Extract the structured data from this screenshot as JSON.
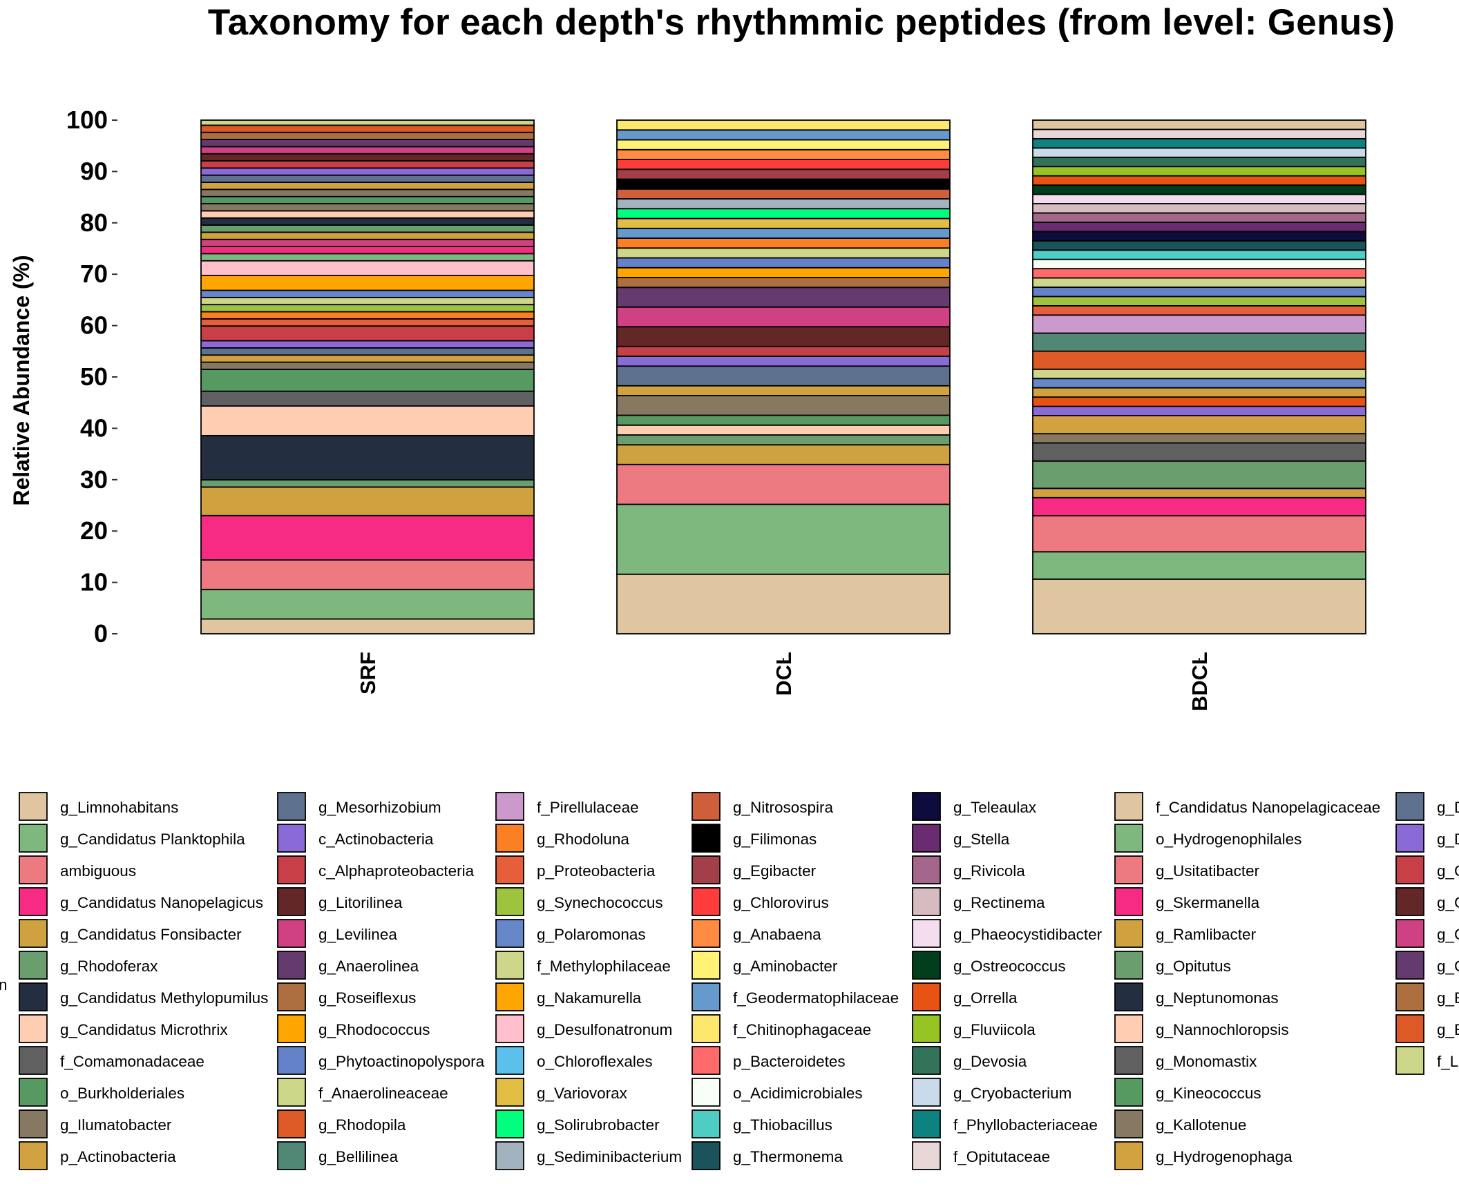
{
  "chart_data": {
    "type": "bar",
    "stacked": true,
    "title": "Taxonomy for each depth's rhythmmic peptides (from level: Genus)",
    "ylabel": "Relative Abundance (%)",
    "xlabel": "",
    "ylim": [
      0,
      100
    ],
    "yticks": [
      "0",
      "10",
      "20",
      "30",
      "40",
      "50",
      "60",
      "70",
      "80",
      "90",
      "100"
    ],
    "categories": [
      "SRF",
      "DCL",
      "BDCL"
    ],
    "legend_title_fragment": "n",
    "legend": [
      {
        "label": "g_Limnohabitans",
        "color": "#DFC5A0"
      },
      {
        "label": "g_Candidatus Planktophila",
        "color": "#7EB87E"
      },
      {
        "label": "ambiguous",
        "color": "#EC7A80"
      },
      {
        "label": "g_Candidatus Nanopelagicus",
        "color": "#F72B84"
      },
      {
        "label": "g_Candidatus Fonsibacter",
        "color": "#CFA23F"
      },
      {
        "label": "g_Rhodoferax",
        "color": "#6B9E6E"
      },
      {
        "label": "g_Candidatus Methylopumilus",
        "color": "#232E40"
      },
      {
        "label": "g_Candidatus Microthrix",
        "color": "#FFCDB2"
      },
      {
        "label": "f_Comamonadaceae",
        "color": "#606060"
      },
      {
        "label": "o_Burkholderiales",
        "color": "#579A61"
      },
      {
        "label": "g_Ilumatobacter",
        "color": "#877961"
      },
      {
        "label": "p_Actinobacteria",
        "color": "#D3A240"
      },
      {
        "label": "g_Mesorhizobium",
        "color": "#5E7290"
      },
      {
        "label": "c_Actinobacteria",
        "color": "#8A6AD6"
      },
      {
        "label": "c_Alphaproteobacteria",
        "color": "#C93F48"
      },
      {
        "label": "g_Litorilinea",
        "color": "#632727"
      },
      {
        "label": "g_Levilinea",
        "color": "#CF4182"
      },
      {
        "label": "g_Anaerolinea",
        "color": "#643A6F"
      },
      {
        "label": "g_Roseiflexus",
        "color": "#AD6F40"
      },
      {
        "label": "g_Rhodococcus",
        "color": "#FFA602"
      },
      {
        "label": "g_Phytoactinopolyspora",
        "color": "#6482C8"
      },
      {
        "label": "f_Anaerolineaceae",
        "color": "#CDD789"
      },
      {
        "label": "g_Rhodopila",
        "color": "#DD5A26"
      },
      {
        "label": "g_Bellilinea",
        "color": "#508775"
      },
      {
        "label": "f_Pirellulaceae",
        "color": "#CC99CC"
      },
      {
        "label": "g_Rhodoluna",
        "color": "#FD7F23"
      },
      {
        "label": "p_Proteobacteria",
        "color": "#E75E3B"
      },
      {
        "label": "g_Synechococcus",
        "color": "#9EC33F"
      },
      {
        "label": "g_Polaromonas",
        "color": "#6586C9"
      },
      {
        "label": "f_Methylophilaceae",
        "color": "#CED789"
      },
      {
        "label": "g_Nakamurella",
        "color": "#FFA602"
      },
      {
        "label": "g_Desulfonatronum",
        "color": "#FFC0CB"
      },
      {
        "label": "o_Chloroflexales",
        "color": "#5BC0EB"
      },
      {
        "label": "g_Variovorax",
        "color": "#E1BE43"
      },
      {
        "label": "g_Solirubrobacter",
        "color": "#00FF7F"
      },
      {
        "label": "g_Sediminibacterium",
        "color": "#A2B2BE"
      },
      {
        "label": "g_Nitrosospira",
        "color": "#CF5E3B"
      },
      {
        "label": "g_Filimonas",
        "color": "#000000"
      },
      {
        "label": "g_Egibacter",
        "color": "#A33F48"
      },
      {
        "label": "g_Chlorovirus",
        "color": "#FF3B3B"
      },
      {
        "label": "g_Anabaena",
        "color": "#FF8C42"
      },
      {
        "label": "g_Aminobacter",
        "color": "#FFF275"
      },
      {
        "label": "f_Geodermatophilaceae",
        "color": "#6699CC"
      },
      {
        "label": "f_Chitinophagaceae",
        "color": "#FFE66D"
      },
      {
        "label": "p_Bacteroidetes",
        "color": "#FF6B6B"
      },
      {
        "label": "o_Acidimicrobiales",
        "color": "#F7FFF7"
      },
      {
        "label": "g_Thiobacillus",
        "color": "#4ECDC4"
      },
      {
        "label": "g_Thermonema",
        "color": "#1A535C"
      },
      {
        "label": "g_Teleaulax",
        "color": "#0D0C3D"
      },
      {
        "label": "g_Stella",
        "color": "#6A2C70"
      },
      {
        "label": "g_Rivicola",
        "color": "#A5668B"
      },
      {
        "label": "g_Rectinema",
        "color": "#D6BCC0"
      },
      {
        "label": "g_Phaeocystidibacter",
        "color": "#F4DDEE"
      },
      {
        "label": "g_Ostreococcus",
        "color": "#013E1B"
      },
      {
        "label": "g_Orrella",
        "color": "#E85314"
      },
      {
        "label": "g_Fluviicola",
        "color": "#96C423"
      },
      {
        "label": "g_Devosia",
        "color": "#33735A"
      },
      {
        "label": "g_Cryobacterium",
        "color": "#C9DAEA"
      },
      {
        "label": "f_Phyllobacteriaceae",
        "color": "#0C8381"
      },
      {
        "label": "f_Opitutaceae",
        "color": "#E8D7D7"
      },
      {
        "label": "f_Candidatus Nanopelagicaceae",
        "color": "#DFC5A0"
      },
      {
        "label": "o_Hydrogenophilales",
        "color": "#7EB87E"
      },
      {
        "label": "g_Usitatibacter",
        "color": "#EC7A80"
      },
      {
        "label": "g_Skermanella",
        "color": "#F72B84"
      },
      {
        "label": "g_Ramlibacter",
        "color": "#CFA23F"
      },
      {
        "label": "g_Opitutus",
        "color": "#6B9E6E"
      },
      {
        "label": "g_Neptunomonas",
        "color": "#232E40"
      },
      {
        "label": "g_Nannochloropsis",
        "color": "#FFCDB2"
      },
      {
        "label": "g_Monomastix",
        "color": "#606060"
      },
      {
        "label": "g_Kineococcus",
        "color": "#579A61"
      },
      {
        "label": "g_Kallotenue",
        "color": "#877961"
      },
      {
        "label": "g_Hydrogenophaga",
        "color": "#D3A240"
      },
      {
        "label": "g_D",
        "color": "#5E7290"
      },
      {
        "label": "g_D",
        "color": "#8A6AD6"
      },
      {
        "label": "g_C",
        "color": "#C93F48"
      },
      {
        "label": "g_C",
        "color": "#632727"
      },
      {
        "label": "g_C",
        "color": "#CF4182"
      },
      {
        "label": "g_C",
        "color": "#643A6F"
      },
      {
        "label": "g_E",
        "color": "#AD6F40"
      },
      {
        "label": "g_E",
        "color": "#DD5A26"
      },
      {
        "label": "f_L",
        "color": "#CDD789"
      }
    ],
    "series_stacks": [
      {
        "category": "SRF",
        "segments": [
          {
            "color": "#DFC5A0",
            "value": 2.9
          },
          {
            "color": "#7EB87E",
            "value": 5.8
          },
          {
            "color": "#EC7A80",
            "value": 5.8
          },
          {
            "color": "#F72B84",
            "value": 8.7
          },
          {
            "color": "#CFA23F",
            "value": 5.6
          },
          {
            "color": "#6B9E6E",
            "value": 1.4
          },
          {
            "color": "#232E40",
            "value": 8.7
          },
          {
            "color": "#FFCDB2",
            "value": 5.8
          },
          {
            "color": "#606060",
            "value": 2.9
          },
          {
            "color": "#579A61",
            "value": 4.3
          },
          {
            "color": "#877961",
            "value": 1.4
          },
          {
            "color": "#D3A240",
            "value": 1.4
          },
          {
            "color": "#5E7290",
            "value": 1.4
          },
          {
            "color": "#8A6AD6",
            "value": 1.4
          },
          {
            "color": "#C93F48",
            "value": 2.9
          },
          {
            "color": "#E75E3B",
            "value": 1.4
          },
          {
            "color": "#FD7F23",
            "value": 1.4
          },
          {
            "color": "#9EC33F",
            "value": 1.4
          },
          {
            "color": "#CED789",
            "value": 1.4
          },
          {
            "color": "#6586C9",
            "value": 1.4
          },
          {
            "color": "#FFA602",
            "value": 2.9
          },
          {
            "color": "#FFC0CB",
            "value": 2.9
          },
          {
            "color": "#7EB87E",
            "value": 1.4
          },
          {
            "color": "#F72B84",
            "value": 1.4
          },
          {
            "color": "#CF4182",
            "value": 1.4
          },
          {
            "color": "#CFA23F",
            "value": 1.4
          },
          {
            "color": "#6B9E6E",
            "value": 1.4
          },
          {
            "color": "#232E40",
            "value": 1.4
          },
          {
            "color": "#FFCDB2",
            "value": 1.4
          },
          {
            "color": "#877961",
            "value": 1.4
          },
          {
            "color": "#579A61",
            "value": 1.4
          },
          {
            "color": "#877961",
            "value": 1.4
          },
          {
            "color": "#D3A240",
            "value": 1.4
          },
          {
            "color": "#5E7290",
            "value": 1.4
          },
          {
            "color": "#8A6AD6",
            "value": 1.4
          },
          {
            "color": "#C93F48",
            "value": 1.4
          },
          {
            "color": "#632727",
            "value": 1.4
          },
          {
            "color": "#CF4182",
            "value": 1.4
          },
          {
            "color": "#643A6F",
            "value": 1.4
          },
          {
            "color": "#AD6F40",
            "value": 1.4
          },
          {
            "color": "#DD5A26",
            "value": 1.4
          },
          {
            "color": "#CDD789",
            "value": 1.0
          }
        ]
      },
      {
        "category": "DCL",
        "segments": [
          {
            "color": "#DFC5A0",
            "value": 11.5
          },
          {
            "color": "#7EB87E",
            "value": 13.5
          },
          {
            "color": "#EC7A80",
            "value": 7.7
          },
          {
            "color": "#CFA23F",
            "value": 3.8
          },
          {
            "color": "#6B9E6E",
            "value": 1.9
          },
          {
            "color": "#FFCDB2",
            "value": 1.9
          },
          {
            "color": "#579A61",
            "value": 1.9
          },
          {
            "color": "#877961",
            "value": 3.8
          },
          {
            "color": "#D3A240",
            "value": 1.9
          },
          {
            "color": "#5E7290",
            "value": 3.8
          },
          {
            "color": "#8A6AD6",
            "value": 1.9
          },
          {
            "color": "#C93F48",
            "value": 1.9
          },
          {
            "color": "#632727",
            "value": 3.8
          },
          {
            "color": "#CF4182",
            "value": 3.8
          },
          {
            "color": "#643A6F",
            "value": 3.8
          },
          {
            "color": "#AD6F40",
            "value": 1.9
          },
          {
            "color": "#FFA602",
            "value": 1.9
          },
          {
            "color": "#6482C8",
            "value": 1.9
          },
          {
            "color": "#CDD789",
            "value": 1.9
          },
          {
            "color": "#FD7F23",
            "value": 1.9
          },
          {
            "color": "#6699CC",
            "value": 1.9
          },
          {
            "color": "#E1BE43",
            "value": 1.9
          },
          {
            "color": "#00FF7F",
            "value": 1.9
          },
          {
            "color": "#A2B2BE",
            "value": 1.9
          },
          {
            "color": "#CF5E3B",
            "value": 1.9
          },
          {
            "color": "#000000",
            "value": 1.9
          },
          {
            "color": "#A33F48",
            "value": 1.9
          },
          {
            "color": "#FF3B3B",
            "value": 1.9
          },
          {
            "color": "#FF8C42",
            "value": 1.9
          },
          {
            "color": "#FFF275",
            "value": 1.9
          },
          {
            "color": "#6699CC",
            "value": 1.9
          },
          {
            "color": "#FFE66D",
            "value": 1.9
          }
        ]
      },
      {
        "category": "BDCL",
        "segments": [
          {
            "color": "#DFC5A0",
            "value": 10.6
          },
          {
            "color": "#7EB87E",
            "value": 5.3
          },
          {
            "color": "#EC7A80",
            "value": 7.0
          },
          {
            "color": "#F72B84",
            "value": 3.5
          },
          {
            "color": "#CFA23F",
            "value": 1.8
          },
          {
            "color": "#6B9E6E",
            "value": 5.3
          },
          {
            "color": "#606060",
            "value": 3.5
          },
          {
            "color": "#877961",
            "value": 1.8
          },
          {
            "color": "#D3A240",
            "value": 3.5
          },
          {
            "color": "#8A6AD6",
            "value": 1.8
          },
          {
            "color": "#E85314",
            "value": 1.8
          },
          {
            "color": "#D3A240",
            "value": 1.8
          },
          {
            "color": "#6586C9",
            "value": 1.8
          },
          {
            "color": "#CED789",
            "value": 1.8
          },
          {
            "color": "#DD5A26",
            "value": 3.5
          },
          {
            "color": "#508775",
            "value": 3.5
          },
          {
            "color": "#CC99CC",
            "value": 3.5
          },
          {
            "color": "#E75E3B",
            "value": 1.8
          },
          {
            "color": "#9EC33F",
            "value": 1.8
          },
          {
            "color": "#6482C8",
            "value": 1.8
          },
          {
            "color": "#CDD789",
            "value": 1.8
          },
          {
            "color": "#FF6B6B",
            "value": 1.8
          },
          {
            "color": "#F7FFF7",
            "value": 1.8
          },
          {
            "color": "#4ECDC4",
            "value": 1.8
          },
          {
            "color": "#1A535C",
            "value": 1.8
          },
          {
            "color": "#0D0C3D",
            "value": 1.8
          },
          {
            "color": "#6A2C70",
            "value": 1.8
          },
          {
            "color": "#A5668B",
            "value": 1.8
          },
          {
            "color": "#D6BCC0",
            "value": 1.8
          },
          {
            "color": "#F4DDEE",
            "value": 1.8
          },
          {
            "color": "#013E1B",
            "value": 1.8
          },
          {
            "color": "#E85314",
            "value": 1.8
          },
          {
            "color": "#96C423",
            "value": 1.8
          },
          {
            "color": "#33735A",
            "value": 1.8
          },
          {
            "color": "#C9DAEA",
            "value": 1.8
          },
          {
            "color": "#0C8381",
            "value": 1.8
          },
          {
            "color": "#E8D7D7",
            "value": 1.8
          },
          {
            "color": "#DFC5A0",
            "value": 1.8
          }
        ]
      }
    ],
    "grid": false,
    "legend_position": "bottom"
  }
}
